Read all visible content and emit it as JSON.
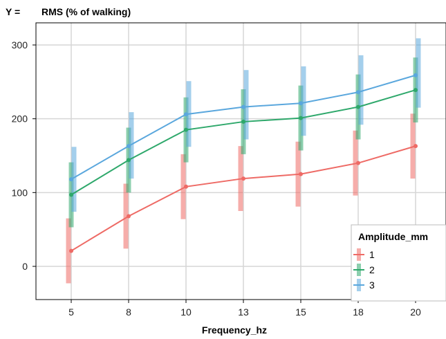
{
  "chart_data": {
    "type": "line",
    "y_title_prefix": "Y =",
    "ylabel": "RMS (% of walking)",
    "xlabel": "Frequency_hz",
    "categories": [
      "5",
      "8",
      "10",
      "13",
      "15",
      "18",
      "20"
    ],
    "ylim": [
      -45,
      330
    ],
    "yticks": [
      0,
      100,
      200,
      300
    ],
    "grid": true,
    "legend": {
      "title": "Amplitude_mm",
      "placement": "bottom-right"
    },
    "series": [
      {
        "name": "1",
        "color": "#ee6a65",
        "values": [
          21,
          68,
          108,
          119,
          125,
          140,
          163
        ],
        "lower": [
          -23,
          24,
          64,
          75,
          81,
          96,
          119
        ],
        "upper": [
          65,
          112,
          152,
          163,
          169,
          184,
          207
        ]
      },
      {
        "name": "2",
        "color": "#2ea86b",
        "values": [
          97,
          144,
          185,
          196,
          201,
          216,
          239
        ],
        "lower": [
          53,
          100,
          141,
          152,
          157,
          172,
          195
        ],
        "upper": [
          141,
          188,
          229,
          240,
          245,
          260,
          283
        ]
      },
      {
        "name": "3",
        "color": "#5aa7dd",
        "values": [
          118,
          163,
          206,
          216,
          221,
          236,
          259
        ],
        "lower": [
          74,
          119,
          162,
          172,
          177,
          192,
          215
        ],
        "upper": [
          162,
          209,
          251,
          266,
          271,
          286,
          309
        ]
      }
    ]
  }
}
